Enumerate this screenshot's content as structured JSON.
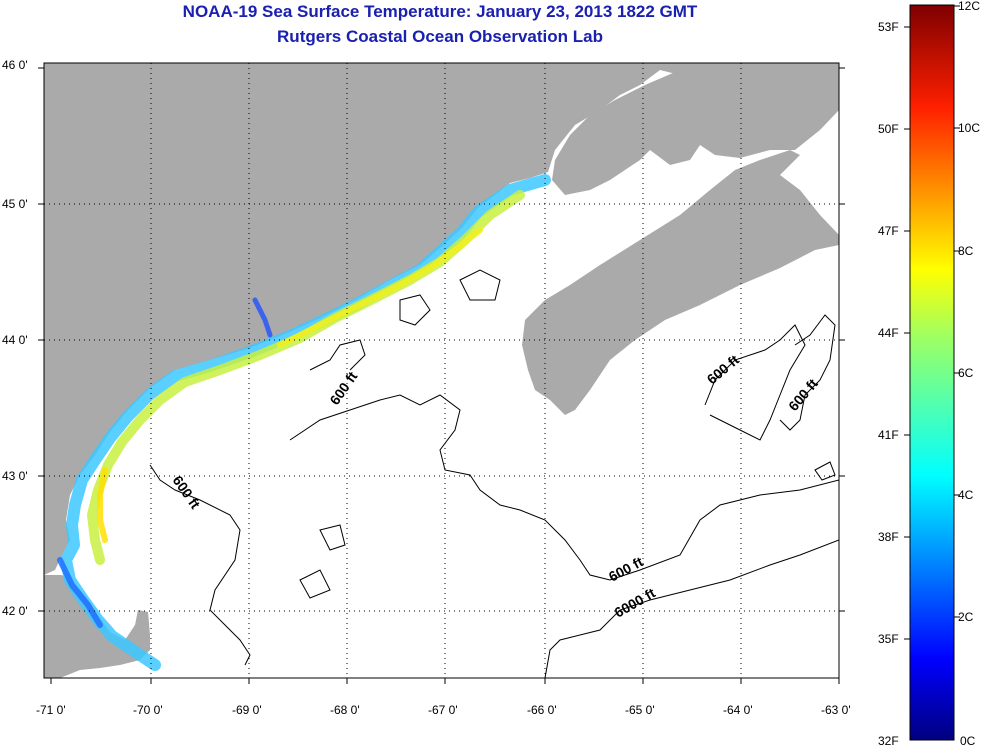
{
  "header": {
    "title": "NOAA-19 Sea Surface Temperature:  January 23, 2013 1822 GMT",
    "subtitle": "Rutgers Coastal Ocean Observation Lab"
  },
  "map": {
    "lon_labels": [
      "-71 0'",
      "-70 0'",
      "-69 0'",
      "-68 0'",
      "-67 0'",
      "-66 0'",
      "-65 0'",
      "-64 0'",
      "-63 0'"
    ],
    "lat_labels": [
      "46 0'",
      "45 0'",
      "44 0'",
      "43 0'",
      "42 0'"
    ],
    "lon_range": [
      -71,
      -63
    ],
    "lat_range": [
      41.5,
      46
    ],
    "contour_labels": [
      {
        "text": "600 ft",
        "id": "c1"
      },
      {
        "text": "600 ft",
        "id": "c2"
      },
      {
        "text": "600 ft",
        "id": "c3"
      },
      {
        "text": "600 ft",
        "id": "c4"
      },
      {
        "text": "600 ft",
        "id": "c5"
      },
      {
        "text": "6000 ft",
        "id": "c6"
      }
    ],
    "colors": {
      "land": "#aaaaaa",
      "water": "#ffffff",
      "contour": "#000000"
    }
  },
  "colorbar": {
    "f_labels": [
      "53F",
      "50F",
      "47F",
      "44F",
      "41F",
      "38F",
      "35F",
      "32F"
    ],
    "c_labels": [
      "12C",
      "10C",
      "8C",
      "6C",
      "4C",
      "2C",
      "0C"
    ],
    "range_c": [
      0,
      12
    ]
  }
}
